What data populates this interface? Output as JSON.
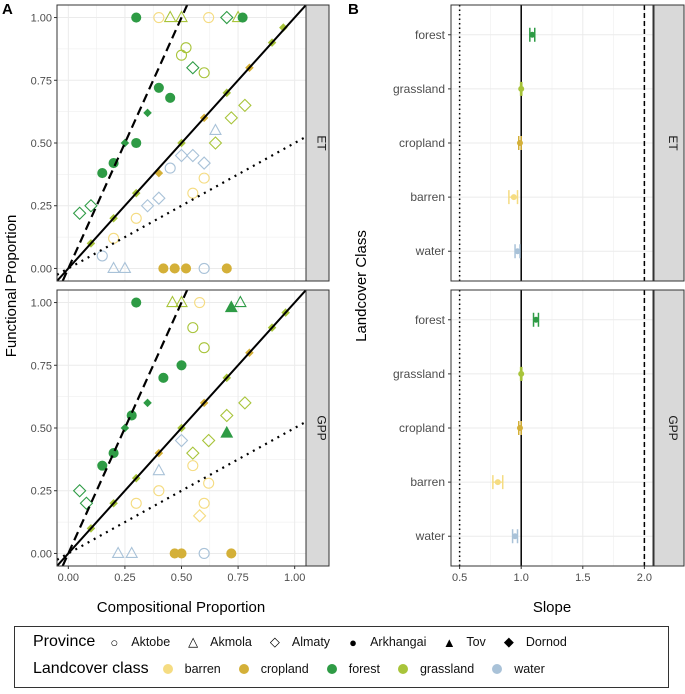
{
  "colors": {
    "barren": "#F5DC82",
    "cropland": "#D4B038",
    "forest": "#2E9B45",
    "grassland": "#A8C43A",
    "water": "#A9C2D8"
  },
  "chart_data": [
    {
      "type": "scatter",
      "panel_label": "A",
      "xlabel": "Compositional Proportion",
      "ylabel": "Functional Proportion",
      "xticks": [
        "0.00",
        "0.25",
        "0.50",
        "0.75",
        "1.00"
      ],
      "yticks": [
        "0.00",
        "0.25",
        "0.50",
        "0.75",
        "1.00"
      ],
      "xlim": [
        -0.05,
        1.05
      ],
      "ylim": [
        -0.05,
        1.05
      ],
      "reference_lines": [
        {
          "slope": 1,
          "style": "solid"
        },
        {
          "slope": 2,
          "style": "dashed"
        },
        {
          "slope": 0.5,
          "style": "dotted"
        }
      ],
      "facets": [
        {
          "name": "ET",
          "points": [
            [
              0.3,
              1,
              2,
              3
            ],
            [
              0.4,
              1,
              0,
              0
            ],
            [
              0.45,
              1,
              3,
              1
            ],
            [
              0.5,
              1,
              3,
              1
            ],
            [
              0.62,
              1,
              0,
              0
            ],
            [
              0.7,
              1,
              2,
              2
            ],
            [
              0.75,
              1,
              3,
              1
            ],
            [
              0.77,
              1,
              2,
              3
            ],
            [
              0.42,
              0,
              1,
              3
            ],
            [
              0.47,
              0,
              1,
              3
            ],
            [
              0.52,
              0,
              1,
              3
            ],
            [
              0.6,
              0,
              4,
              0
            ],
            [
              0.7,
              0,
              1,
              3
            ],
            [
              0.2,
              0,
              4,
              1
            ],
            [
              0.25,
              0,
              4,
              1
            ],
            [
              0.05,
              0.22,
              2,
              2
            ],
            [
              0.1,
              0.25,
              2,
              2
            ],
            [
              0.15,
              0.38,
              2,
              3
            ],
            [
              0.2,
              0.42,
              2,
              3
            ],
            [
              0.25,
              0.5,
              2,
              5
            ],
            [
              0.3,
              0.5,
              2,
              3
            ],
            [
              0.35,
              0.62,
              2,
              5
            ],
            [
              0.4,
              0.72,
              2,
              3
            ],
            [
              0.45,
              0.68,
              2,
              3
            ],
            [
              0.55,
              0.8,
              2,
              2
            ],
            [
              0.6,
              0.78,
              3,
              0
            ],
            [
              0.5,
              0.85,
              3,
              0
            ],
            [
              0.52,
              0.88,
              3,
              0
            ],
            [
              0.1,
              0.1,
              3,
              5
            ],
            [
              0.2,
              0.2,
              3,
              5
            ],
            [
              0.3,
              0.3,
              3,
              5
            ],
            [
              0.4,
              0.38,
              1,
              5
            ],
            [
              0.5,
              0.5,
              3,
              5
            ],
            [
              0.6,
              0.6,
              1,
              5
            ],
            [
              0.7,
              0.7,
              3,
              5
            ],
            [
              0.8,
              0.8,
              1,
              5
            ],
            [
              0.9,
              0.9,
              3,
              5
            ],
            [
              0.95,
              0.96,
              3,
              5
            ],
            [
              0.35,
              0.25,
              4,
              2
            ],
            [
              0.4,
              0.28,
              4,
              2
            ],
            [
              0.5,
              0.45,
              4,
              2
            ],
            [
              0.55,
              0.45,
              4,
              2
            ],
            [
              0.6,
              0.42,
              4,
              2
            ],
            [
              0.65,
              0.5,
              3,
              2
            ],
            [
              0.72,
              0.6,
              3,
              2
            ],
            [
              0.78,
              0.65,
              3,
              2
            ],
            [
              0.6,
              0.36,
              0,
              0
            ],
            [
              0.55,
              0.3,
              0,
              0
            ],
            [
              0.45,
              0.4,
              4,
              0
            ],
            [
              0.3,
              0.2,
              0,
              0
            ],
            [
              0.2,
              0.12,
              0,
              0
            ],
            [
              0.15,
              0.05,
              4,
              0
            ],
            [
              0.65,
              0.55,
              4,
              1
            ]
          ]
        },
        {
          "name": "GPP",
          "points": [
            [
              0.3,
              1,
              2,
              3
            ],
            [
              0.46,
              1,
              3,
              1
            ],
            [
              0.5,
              1,
              3,
              1
            ],
            [
              0.58,
              1,
              0,
              0
            ],
            [
              0.76,
              1,
              2,
              1
            ],
            [
              0.72,
              0.98,
              2,
              4
            ],
            [
              0.47,
              0,
              1,
              3
            ],
            [
              0.5,
              0,
              1,
              3
            ],
            [
              0.6,
              0,
              4,
              0
            ],
            [
              0.72,
              0,
              1,
              3
            ],
            [
              0.22,
              0,
              4,
              1
            ],
            [
              0.28,
              0,
              4,
              1
            ],
            [
              0.05,
              0.25,
              2,
              2
            ],
            [
              0.08,
              0.2,
              2,
              2
            ],
            [
              0.15,
              0.35,
              2,
              3
            ],
            [
              0.2,
              0.4,
              2,
              3
            ],
            [
              0.25,
              0.5,
              2,
              5
            ],
            [
              0.28,
              0.55,
              2,
              3
            ],
            [
              0.35,
              0.6,
              2,
              5
            ],
            [
              0.42,
              0.7,
              2,
              3
            ],
            [
              0.5,
              0.75,
              2,
              3
            ],
            [
              0.6,
              0.82,
              3,
              0
            ],
            [
              0.7,
              0.48,
              2,
              4
            ],
            [
              0.55,
              0.9,
              3,
              0
            ],
            [
              0.1,
              0.1,
              3,
              5
            ],
            [
              0.2,
              0.2,
              3,
              5
            ],
            [
              0.3,
              0.3,
              3,
              5
            ],
            [
              0.4,
              0.4,
              1,
              5
            ],
            [
              0.5,
              0.5,
              3,
              5
            ],
            [
              0.6,
              0.6,
              1,
              5
            ],
            [
              0.7,
              0.7,
              3,
              5
            ],
            [
              0.8,
              0.8,
              1,
              5
            ],
            [
              0.9,
              0.9,
              3,
              5
            ],
            [
              0.96,
              0.96,
              3,
              5
            ],
            [
              0.4,
              0.33,
              4,
              1
            ],
            [
              0.5,
              0.45,
              4,
              2
            ],
            [
              0.55,
              0.4,
              3,
              2
            ],
            [
              0.62,
              0.45,
              3,
              2
            ],
            [
              0.7,
              0.55,
              3,
              2
            ],
            [
              0.78,
              0.6,
              3,
              2
            ],
            [
              0.6,
              0.2,
              0,
              0
            ],
            [
              0.58,
              0.15,
              0,
              2
            ],
            [
              0.55,
              0.35,
              0,
              0
            ],
            [
              0.4,
              0.25,
              0,
              0
            ],
            [
              0.3,
              0.2,
              0,
              0
            ],
            [
              0.62,
              0.28,
              0,
              0
            ]
          ]
        }
      ]
    },
    {
      "type": "errorbar",
      "panel_label": "B",
      "xlabel": "Slope",
      "ylabel": "Landcover Class",
      "xticks": [
        "0.5",
        "1.0",
        "1.5",
        "2.0"
      ],
      "xlim": [
        0.43,
        2.07
      ],
      "categories": [
        "forest",
        "grassland",
        "cropland",
        "barren",
        "water"
      ],
      "reference_lines": [
        {
          "x": 1,
          "style": "solid"
        },
        {
          "x": 2,
          "style": "dashed"
        },
        {
          "x": 0.5,
          "style": "dotted"
        }
      ],
      "facets": [
        {
          "name": "ET",
          "series": [
            {
              "cat": "forest",
              "value": 1.09,
              "lo": 1.07,
              "hi": 1.11
            },
            {
              "cat": "grassland",
              "value": 1.0,
              "lo": 0.995,
              "hi": 1.005
            },
            {
              "cat": "cropland",
              "value": 0.99,
              "lo": 0.98,
              "hi": 1.0
            },
            {
              "cat": "barren",
              "value": 0.94,
              "lo": 0.9,
              "hi": 0.97
            },
            {
              "cat": "water",
              "value": 0.97,
              "lo": 0.95,
              "hi": 0.99
            }
          ]
        },
        {
          "name": "GPP",
          "series": [
            {
              "cat": "forest",
              "value": 1.12,
              "lo": 1.1,
              "hi": 1.14
            },
            {
              "cat": "grassland",
              "value": 1.0,
              "lo": 0.995,
              "hi": 1.005
            },
            {
              "cat": "cropland",
              "value": 0.99,
              "lo": 0.98,
              "hi": 1.0
            },
            {
              "cat": "barren",
              "value": 0.81,
              "lo": 0.77,
              "hi": 0.85
            },
            {
              "cat": "water",
              "value": 0.95,
              "lo": 0.93,
              "hi": 0.97
            }
          ]
        }
      ]
    }
  ],
  "legend": {
    "province_title": "Province",
    "provinces": [
      "Aktobe",
      "Akmola",
      "Almaty",
      "Arkhangai",
      "Tov",
      "Dornod"
    ],
    "province_shapes": [
      "○",
      "△",
      "◇",
      "●",
      "▲",
      "◆"
    ],
    "landcover_title": "Landcover class",
    "landcovers": [
      "barren",
      "cropland",
      "forest",
      "grassland",
      "water"
    ]
  }
}
